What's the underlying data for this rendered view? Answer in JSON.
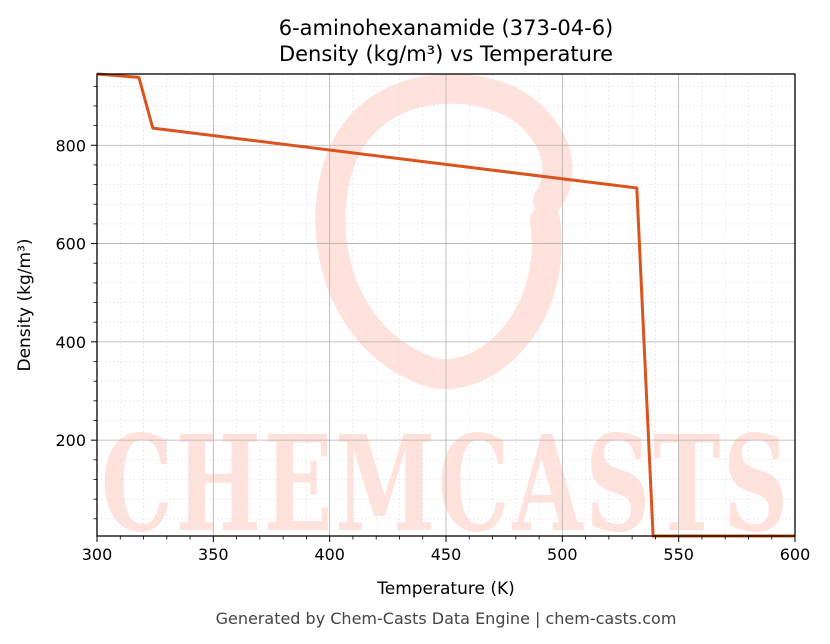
{
  "chart_data": {
    "type": "line",
    "title": "6-aminohexanamide (373-04-6)",
    "subtitle": "Density (kg/m³) vs Temperature",
    "xlabel": "Temperature (K)",
    "ylabel": "Density (kg/m³)",
    "xlim": [
      300,
      600
    ],
    "ylim": [
      5,
      945
    ],
    "x_ticks": [
      "300",
      "350",
      "400",
      "450",
      "500",
      "550",
      "600"
    ],
    "y_ticks": [
      "200",
      "400",
      "600",
      "800"
    ],
    "grid": true,
    "legend": "none",
    "series": [
      {
        "color": "#d9541e",
        "x": [
          300,
          318,
          324,
          532,
          539,
          600
        ],
        "y": [
          945,
          938,
          835,
          713,
          5,
          5
        ]
      }
    ]
  },
  "watermark": {
    "text": "CHEMCASTS",
    "color": "#ffe2dc"
  },
  "footer": "Generated by Chem-Casts Data Engine | chem-casts.com"
}
